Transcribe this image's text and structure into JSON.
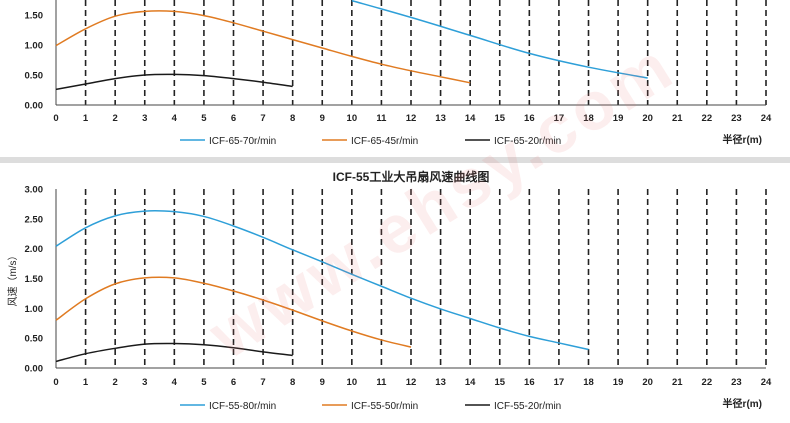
{
  "watermark": "www.ehsy.com",
  "colors": {
    "blue": "#2e9fd8",
    "orange": "#e07b22",
    "black": "#1a1a1a"
  },
  "chart_data": [
    {
      "type": "line",
      "title": "",
      "xlabel": "半径r(m)",
      "ylabel": "",
      "xlim": [
        0,
        24
      ],
      "ylim": [
        0,
        1.75
      ],
      "x_ticks": [
        "0",
        "1",
        "2",
        "3",
        "4",
        "5",
        "6",
        "7",
        "8",
        "9",
        "10",
        "11",
        "12",
        "13",
        "14",
        "15",
        "16",
        "17",
        "18",
        "19",
        "20",
        "21",
        "22",
        "23",
        "24"
      ],
      "y_ticks": [
        "0.00",
        "0.50",
        "1.00",
        "1.50"
      ],
      "grid": "vertical dashed",
      "legend_position": "bottom",
      "series": [
        {
          "name": "ICF-65-70r/min",
          "color": "#2e9fd8",
          "x": [
            10,
            12,
            14,
            16,
            18,
            20
          ],
          "y": [
            1.74,
            1.46,
            1.16,
            0.86,
            0.63,
            0.45
          ]
        },
        {
          "name": "ICF-65-45r/min",
          "color": "#e07b22",
          "x": [
            0,
            1,
            2,
            3,
            4,
            5,
            6,
            7,
            8,
            9,
            10,
            11,
            12,
            13,
            14
          ],
          "y": [
            0.99,
            1.27,
            1.48,
            1.56,
            1.56,
            1.49,
            1.37,
            1.23,
            1.09,
            0.95,
            0.81,
            0.68,
            0.57,
            0.47,
            0.37
          ]
        },
        {
          "name": "ICF-65-20r/min",
          "color": "#1a1a1a",
          "x": [
            0,
            1,
            2,
            3,
            4,
            5,
            6,
            7,
            8
          ],
          "y": [
            0.26,
            0.35,
            0.44,
            0.5,
            0.51,
            0.49,
            0.44,
            0.38,
            0.31
          ]
        }
      ]
    },
    {
      "type": "line",
      "title": "ICF-55工业大吊扇风速曲线图",
      "xlabel": "半径r(m)",
      "ylabel": "风速（m/s）",
      "xlim": [
        0,
        24
      ],
      "ylim": [
        0,
        3.0
      ],
      "x_ticks": [
        "0",
        "1",
        "2",
        "3",
        "4",
        "5",
        "6",
        "7",
        "8",
        "9",
        "10",
        "11",
        "12",
        "13",
        "14",
        "15",
        "16",
        "17",
        "18",
        "19",
        "20",
        "21",
        "22",
        "23",
        "24"
      ],
      "y_ticks": [
        "0.00",
        "0.50",
        "1.00",
        "1.50",
        "2.00",
        "2.50",
        "3.00"
      ],
      "grid": "vertical dashed",
      "legend_position": "bottom",
      "series": [
        {
          "name": "ICF-55-80r/min",
          "color": "#2e9fd8",
          "x": [
            0,
            1,
            2,
            3,
            4,
            5,
            6,
            7,
            8,
            9,
            10,
            11,
            12,
            13,
            14,
            15,
            16,
            17,
            18
          ],
          "y": [
            2.04,
            2.35,
            2.55,
            2.63,
            2.62,
            2.54,
            2.38,
            2.19,
            1.98,
            1.78,
            1.57,
            1.37,
            1.17,
            0.99,
            0.83,
            0.67,
            0.53,
            0.42,
            0.31
          ]
        },
        {
          "name": "ICF-55-50r/min",
          "color": "#e07b22",
          "x": [
            0,
            1,
            2,
            3,
            4,
            5,
            6,
            7,
            8,
            9,
            10,
            11,
            12
          ],
          "y": [
            0.8,
            1.16,
            1.41,
            1.51,
            1.51,
            1.42,
            1.29,
            1.14,
            0.97,
            0.79,
            0.62,
            0.47,
            0.35
          ]
        },
        {
          "name": "ICF-55-20r/min",
          "color": "#1a1a1a",
          "x": [
            0,
            1,
            2,
            3,
            4,
            5,
            6,
            7,
            8
          ],
          "y": [
            0.11,
            0.24,
            0.33,
            0.4,
            0.41,
            0.39,
            0.34,
            0.27,
            0.21
          ]
        }
      ]
    }
  ]
}
